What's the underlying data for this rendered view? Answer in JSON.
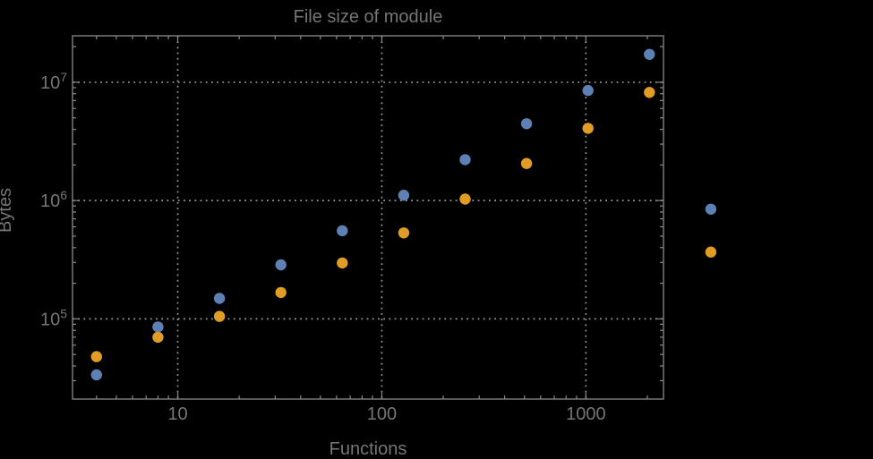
{
  "colors": {
    "background": "#000000",
    "frame": "#8A8A8A",
    "tick": "#8A8A8A",
    "grid": "#9A9A9A",
    "text": "#757575",
    "series_blue": "#5E81B5",
    "series_orange": "#E09C24"
  },
  "chart_data": {
    "type": "scatter",
    "title": "File size of module",
    "xlabel": "Functions",
    "ylabel": "Bytes",
    "xscale": "log",
    "yscale": "log",
    "xlim": [
      3.05,
      2400
    ],
    "ylim": [
      21000,
      24700000
    ],
    "grid": "major-dotted",
    "legend": "none",
    "marker": "filled-circle",
    "x_major_ticks": [
      {
        "value": 10,
        "label": "10"
      },
      {
        "value": 100,
        "label": "100"
      },
      {
        "value": 1000,
        "label": "1000"
      }
    ],
    "y_major_ticks": [
      {
        "value": 100000,
        "base": "10",
        "exp": "5"
      },
      {
        "value": 1000000,
        "base": "10",
        "exp": "6"
      },
      {
        "value": 10000000,
        "base": "10",
        "exp": "7"
      }
    ],
    "x": [
      4,
      8,
      16,
      32,
      64,
      128,
      256,
      512,
      1024,
      2048,
      4096
    ],
    "series": [
      {
        "name": "blue",
        "color": "#5E81B5",
        "values": [
          33600,
          85500,
          149000,
          286000,
          556000,
          1110000,
          2220000,
          4460000,
          8530000,
          17200000,
          845000
        ]
      },
      {
        "name": "orange",
        "color": "#E09C24",
        "values": [
          47900,
          70000,
          105000,
          167000,
          297000,
          533000,
          1030000,
          2060000,
          4080000,
          8200000,
          367000
        ]
      }
    ],
    "note": "last x (4096) points are drawn outside the right edge of the plot frame"
  }
}
